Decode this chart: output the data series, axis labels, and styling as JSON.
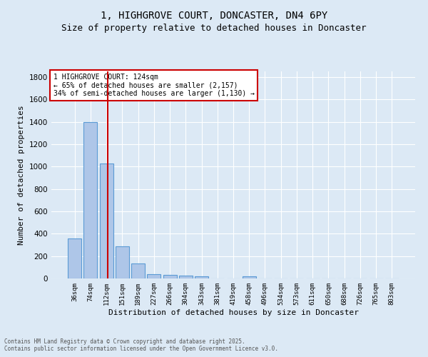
{
  "title": "1, HIGHGROVE COURT, DONCASTER, DN4 6PY",
  "subtitle": "Size of property relative to detached houses in Doncaster",
  "xlabel": "Distribution of detached houses by size in Doncaster",
  "ylabel": "Number of detached properties",
  "footnote1": "Contains HM Land Registry data © Crown copyright and database right 2025.",
  "footnote2": "Contains public sector information licensed under the Open Government Licence v3.0.",
  "annotation_line1": "1 HIGHGROVE COURT: 124sqm",
  "annotation_line2": "← 65% of detached houses are smaller (2,157)",
  "annotation_line3": "34% of semi-detached houses are larger (1,130) →",
  "bin_labels": [
    "36sqm",
    "74sqm",
    "112sqm",
    "151sqm",
    "189sqm",
    "227sqm",
    "266sqm",
    "304sqm",
    "343sqm",
    "381sqm",
    "419sqm",
    "458sqm",
    "496sqm",
    "534sqm",
    "573sqm",
    "611sqm",
    "650sqm",
    "688sqm",
    "726sqm",
    "765sqm",
    "803sqm"
  ],
  "bar_values": [
    360,
    1400,
    1030,
    290,
    137,
    40,
    35,
    25,
    18,
    0,
    0,
    18,
    0,
    0,
    0,
    0,
    0,
    0,
    0,
    0,
    0
  ],
  "bar_color": "#aec6e8",
  "bar_edge_color": "#5b9bd5",
  "red_line_x": 2.08,
  "ylim": [
    0,
    1850
  ],
  "yticks": [
    0,
    200,
    400,
    600,
    800,
    1000,
    1200,
    1400,
    1600,
    1800
  ],
  "background_color": "#dce9f5",
  "plot_bg_color": "#dce9f5",
  "annotation_box_color": "#ffffff",
  "annotation_box_edge": "#cc0000",
  "red_line_color": "#cc0000",
  "title_fontsize": 10,
  "subtitle_fontsize": 9,
  "xlabel_fontsize": 8,
  "ylabel_fontsize": 8
}
